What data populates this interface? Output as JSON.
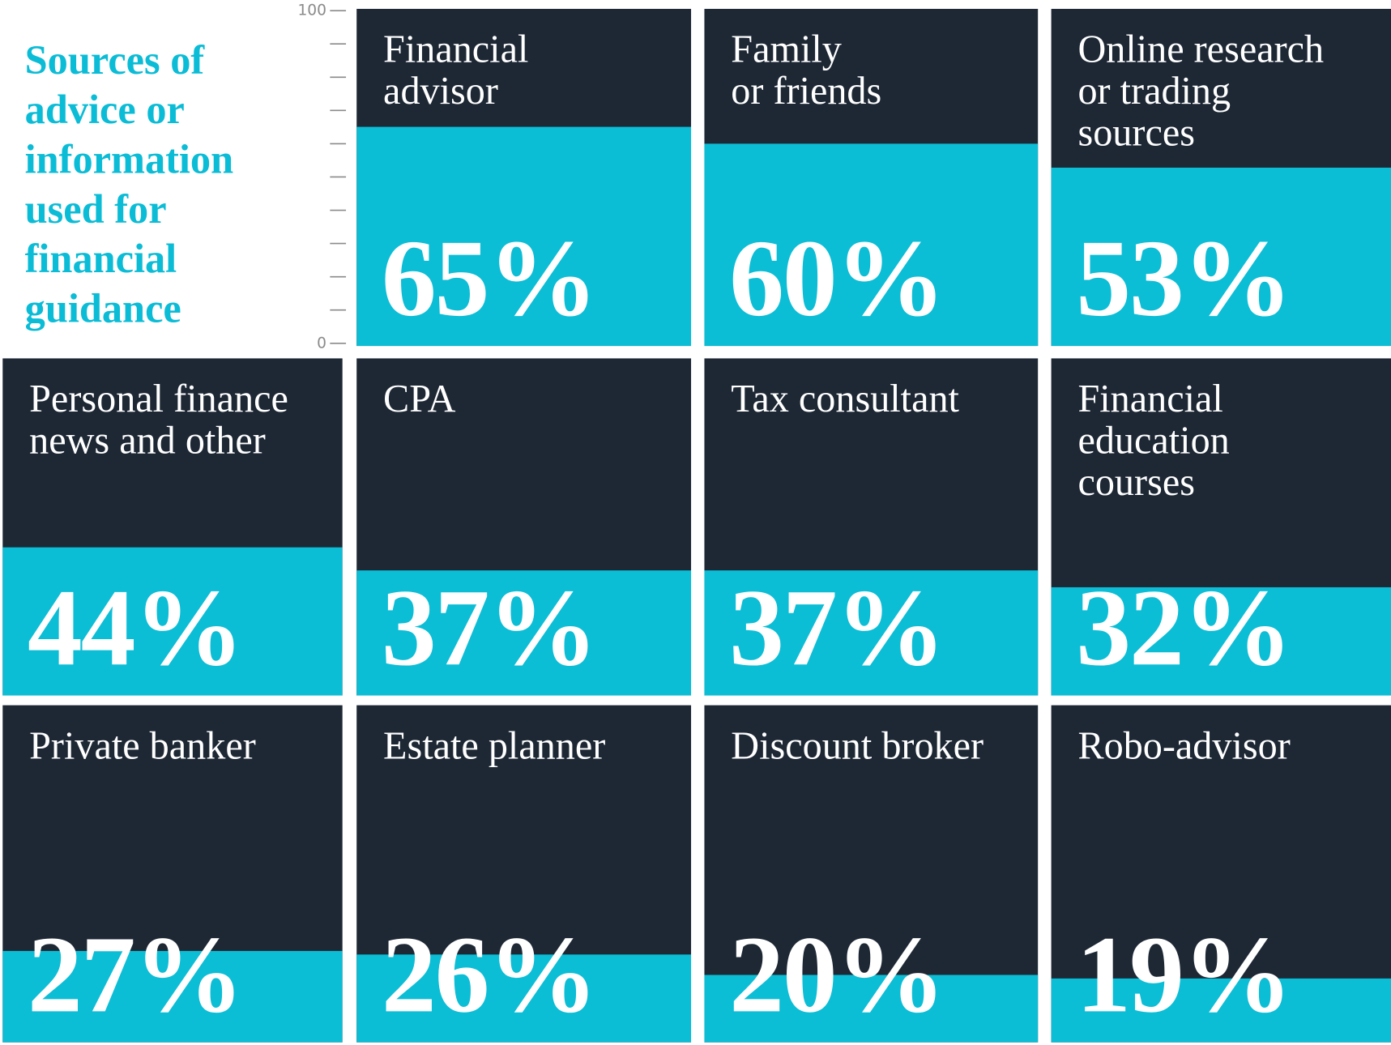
{
  "chart_data": {
    "type": "tile",
    "title": "Sources of\nadvice or\ninformation\nused for\nfinancial\nguidance",
    "categories": [
      "Financial\nadvisor",
      "Family\nor friends",
      "Online research\nor trading\nsources",
      "Personal finance\nnews and other",
      "CPA",
      "Tax consultant",
      "Financial\neducation\ncourses",
      "Private banker",
      "Estate planner",
      "Discount broker",
      "Robo-advisor"
    ],
    "values": [
      65,
      60,
      53,
      44,
      37,
      37,
      32,
      27,
      26,
      20,
      19
    ],
    "value_labels": [
      "65%",
      "60%",
      "53%",
      "44%",
      "37%",
      "37%",
      "32%",
      "27%",
      "26%",
      "20%",
      "19%"
    ],
    "color": "#0bbed6",
    "background": "#1e2835",
    "ylim": [
      0,
      100
    ],
    "yticks": [
      0,
      100
    ],
    "yminor_ticks": [
      10,
      20,
      30,
      40,
      50,
      60,
      70,
      80,
      90
    ]
  }
}
